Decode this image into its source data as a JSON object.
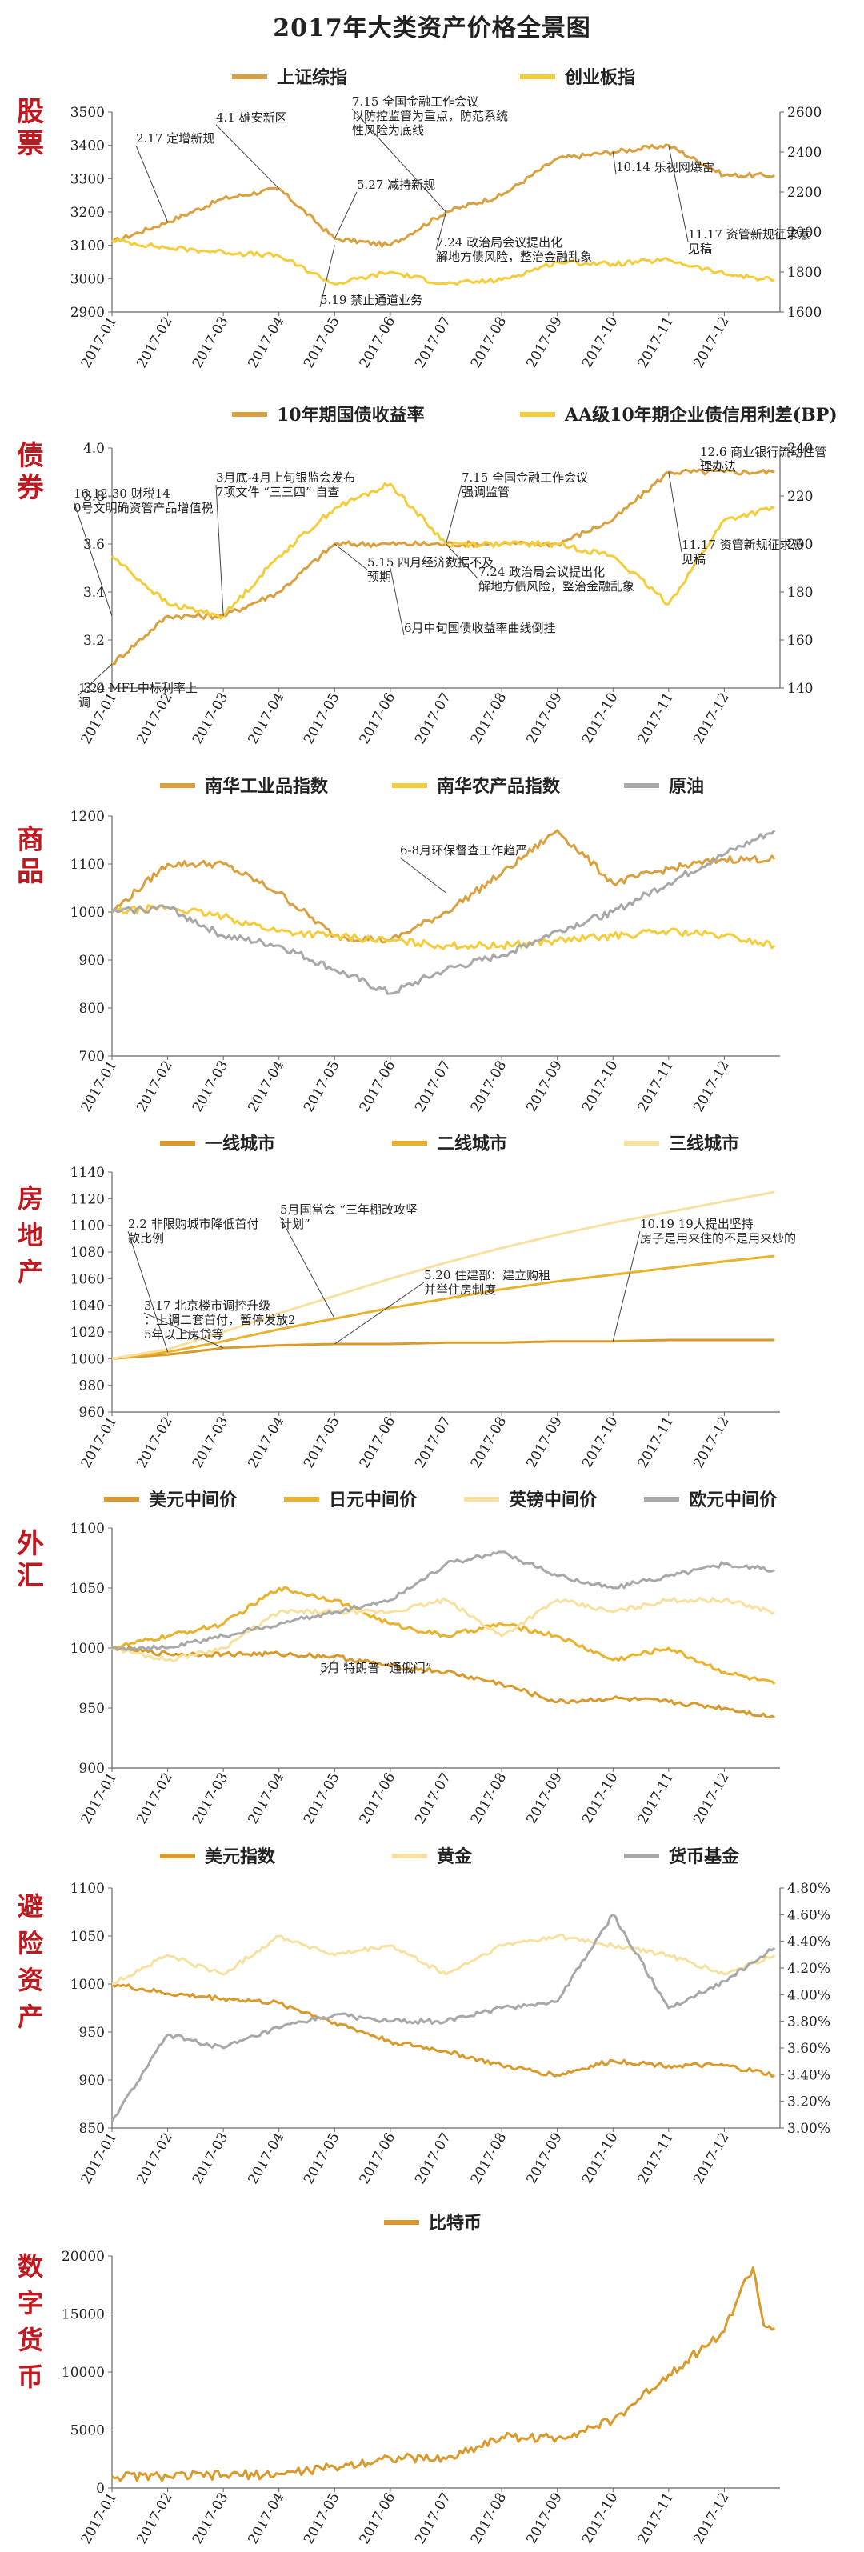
{
  "title": "2017年大类资产价格全景图",
  "chart_data": [
    {
      "id": "stocks",
      "type": "line",
      "section_label": "股票",
      "legend_placement": "top",
      "x": [
        "2017-01",
        "2017-02",
        "2017-03",
        "2017-04",
        "2017-05",
        "2017-06",
        "2017-07",
        "2017-08",
        "2017-09",
        "2017-10",
        "2017-11",
        "2017-12",
        "2017-12-29"
      ],
      "xticks": [
        "2017-01",
        "2017-02",
        "2017-03",
        "2017-04",
        "2017-05",
        "2017-06",
        "2017-07",
        "2017-08",
        "2017-09",
        "2017-10",
        "2017-11",
        "2017-12"
      ],
      "left_axis": {
        "ylim": [
          2900,
          3500
        ],
        "ticks": [
          2900,
          3000,
          3100,
          3200,
          3300,
          3400,
          3500
        ]
      },
      "right_axis": {
        "ylim": [
          1600,
          2600
        ],
        "ticks": [
          1600,
          1800,
          2000,
          2200,
          2400,
          2600
        ]
      },
      "series": [
        {
          "name": "上证综指",
          "axis": "left",
          "color": "#d9a03d",
          "values": [
            3110,
            3170,
            3240,
            3270,
            3120,
            3100,
            3200,
            3250,
            3360,
            3380,
            3400,
            3310,
            3310
          ]
        },
        {
          "name": "创业板指",
          "axis": "right",
          "color": "#f5cc3a",
          "values": [
            1960,
            1920,
            1900,
            1880,
            1740,
            1800,
            1740,
            1760,
            1850,
            1840,
            1860,
            1790,
            1760
          ]
        }
      ],
      "annotations": [
        {
          "text": "2.17 定增新规",
          "x": "2017-02",
          "y": 3170
        },
        {
          "text": "4.1 雄安新区",
          "x": "2017-04",
          "y": 3270
        },
        {
          "text": "5.19 禁止通道业务",
          "x": "2017-05",
          "y": 3100
        },
        {
          "text": "5.27 减持新规",
          "x": "2017-05",
          "y": 3120
        },
        {
          "text": "7.15 全国金融工作会议以防控监管为重点，防范系统性风险为底线",
          "x": "2017-07",
          "y": 3200
        },
        {
          "text": "7.24 政治局会议提出化解地方债风险，整治金融乱象",
          "x": "2017-07",
          "y": 3200
        },
        {
          "text": "10.14 乐视网爆雷",
          "x": "2017-10",
          "y": 3380
        },
        {
          "text": "11.17 资管新规征求意见稿",
          "x": "2017-11",
          "y": 3400
        }
      ]
    },
    {
      "id": "bonds",
      "type": "line",
      "section_label": "债券",
      "legend_placement": "top",
      "x": [
        "2017-01",
        "2017-02",
        "2017-03",
        "2017-04",
        "2017-05",
        "2017-06",
        "2017-07",
        "2017-08",
        "2017-09",
        "2017-10",
        "2017-11",
        "2017-12",
        "2017-12-29"
      ],
      "xticks": [
        "2017-01",
        "2017-02",
        "2017-03",
        "2017-04",
        "2017-05",
        "2017-06",
        "2017-07",
        "2017-08",
        "2017-09",
        "2017-10",
        "2017-11",
        "2017-12"
      ],
      "left_axis": {
        "ylim": [
          3.0,
          4.0
        ],
        "ticks": [
          "3.0",
          "3.2",
          "3.4",
          "3.6",
          "3.8",
          "4.0"
        ]
      },
      "right_axis": {
        "ylim": [
          140,
          240
        ],
        "ticks": [
          140,
          160,
          180,
          200,
          220,
          240
        ]
      },
      "series": [
        {
          "name": "10年期国债收益率",
          "axis": "left",
          "color": "#d9a03d",
          "values": [
            3.1,
            3.3,
            3.3,
            3.4,
            3.6,
            3.6,
            3.6,
            3.6,
            3.6,
            3.7,
            3.9,
            3.9,
            3.9
          ]
        },
        {
          "name": "AA级10年期企业债信用利差(BP)",
          "axis": "right",
          "color": "#f5cc3a",
          "values": [
            195,
            175,
            170,
            195,
            215,
            225,
            200,
            200,
            200,
            195,
            175,
            210,
            215
          ]
        }
      ],
      "annotations": [
        {
          "text": "16.12.30 财税140号文明确资管产品增值税",
          "x": "2017-01",
          "y": 3.3
        },
        {
          "text": "1.24 MFL中标利率上调",
          "x": "2017-01",
          "y": 3.1
        },
        {
          "text": "3月底-4月上旬银监会发布7项文件 “三三四” 自查",
          "x": "2017-03",
          "y": 3.3
        },
        {
          "text": "5.15 四月经济数据不及预期",
          "x": "2017-05",
          "y": 3.6
        },
        {
          "text": "6月中旬国债收益率曲线倒挂",
          "x": "2017-06",
          "y": 3.5
        },
        {
          "text": "7.15 全国金融工作会议强调监管",
          "x": "2017-07",
          "y": 3.6
        },
        {
          "text": "7.24 政治局会议提出化解地方债风险，整治金融乱象",
          "x": "2017-07",
          "y": 3.6
        },
        {
          "text": "12.6 商业银行流动性管理办法",
          "x": "2017-12",
          "y": 3.9
        },
        {
          "text": "11.17 资管新规征求意见稿",
          "x": "2017-11",
          "y": 3.9
        }
      ]
    },
    {
      "id": "commodities",
      "type": "line",
      "section_label": "商品",
      "legend_placement": "top",
      "x": [
        "2017-01",
        "2017-02",
        "2017-03",
        "2017-04",
        "2017-05",
        "2017-06",
        "2017-07",
        "2017-08",
        "2017-09",
        "2017-10",
        "2017-11",
        "2017-12",
        "2017-12-29"
      ],
      "xticks": [
        "2017-01",
        "2017-02",
        "2017-03",
        "2017-04",
        "2017-05",
        "2017-06",
        "2017-07",
        "2017-08",
        "2017-09",
        "2017-10",
        "2017-11",
        "2017-12"
      ],
      "left_axis": {
        "ylim": [
          700,
          1200
        ],
        "ticks": [
          700,
          800,
          900,
          1000,
          1100,
          1200
        ]
      },
      "series": [
        {
          "name": "南华工业品指数",
          "axis": "left",
          "color": "#d9a03d",
          "values": [
            1000,
            1100,
            1100,
            1040,
            950,
            940,
            1000,
            1080,
            1170,
            1060,
            1090,
            1110,
            1110
          ]
        },
        {
          "name": "南华农产品指数",
          "axis": "left",
          "color": "#f5cc3a",
          "values": [
            1000,
            1010,
            990,
            960,
            950,
            940,
            930,
            930,
            940,
            950,
            960,
            950,
            930
          ]
        },
        {
          "name": "原油",
          "axis": "left",
          "color": "#a8a8a8",
          "values": [
            1000,
            1010,
            950,
            930,
            880,
            830,
            880,
            910,
            960,
            1000,
            1060,
            1120,
            1170
          ]
        }
      ],
      "annotations": [
        {
          "text": "6-8月环保督查工作趋严",
          "x": "2017-07",
          "y": 1040
        }
      ]
    },
    {
      "id": "real_estate",
      "type": "line",
      "section_label": "房地产",
      "legend_placement": "top",
      "x": [
        "2017-01",
        "2017-02",
        "2017-03",
        "2017-04",
        "2017-05",
        "2017-06",
        "2017-07",
        "2017-08",
        "2017-09",
        "2017-10",
        "2017-11",
        "2017-12",
        "2017-12-29"
      ],
      "xticks": [
        "2017-01",
        "2017-02",
        "2017-03",
        "2017-04",
        "2017-05",
        "2017-06",
        "2017-07",
        "2017-08",
        "2017-09",
        "2017-10",
        "2017-11",
        "2017-12"
      ],
      "left_axis": {
        "ylim": [
          960,
          1140
        ],
        "ticks": [
          960,
          980,
          1000,
          1020,
          1040,
          1060,
          1080,
          1100,
          1120,
          1140
        ]
      },
      "series": [
        {
          "name": "一线城市",
          "axis": "left",
          "color": "#d99a2b",
          "values": [
            1000,
            1003,
            1008,
            1010,
            1011,
            1011,
            1012,
            1012,
            1013,
            1013,
            1014,
            1014,
            1014
          ]
        },
        {
          "name": "二线城市",
          "axis": "left",
          "color": "#eab22a",
          "values": [
            1000,
            1005,
            1013,
            1022,
            1030,
            1038,
            1045,
            1052,
            1058,
            1063,
            1068,
            1073,
            1077
          ]
        },
        {
          "name": "三线城市",
          "axis": "left",
          "color": "#f8e1a0",
          "values": [
            1000,
            1007,
            1020,
            1034,
            1047,
            1060,
            1072,
            1083,
            1093,
            1102,
            1110,
            1118,
            1125
          ]
        }
      ],
      "annotations": [
        {
          "text": "2.2 非限购城市降低首付款比例",
          "x": "2017-02",
          "y": 1005
        },
        {
          "text": "3.17 北京楼市调控升级：上调二套首付，暂停发放25年以上房贷等",
          "x": "2017-03",
          "y": 1008
        },
        {
          "text": "5月国常会 “三年棚改攻坚计划”",
          "x": "2017-05",
          "y": 1030
        },
        {
          "text": "5.20 住建部：建立购租并举住房制度",
          "x": "2017-05",
          "y": 1011
        },
        {
          "text": "10.19 19大提出坚持房子是用来住的不是用来炒的",
          "x": "2017-10",
          "y": 1013
        }
      ]
    },
    {
      "id": "fx",
      "type": "line",
      "section_label": "外汇",
      "legend_placement": "top",
      "x": [
        "2017-01",
        "2017-02",
        "2017-03",
        "2017-04",
        "2017-05",
        "2017-06",
        "2017-07",
        "2017-08",
        "2017-09",
        "2017-10",
        "2017-11",
        "2017-12",
        "2017-12-29"
      ],
      "xticks": [
        "2017-01",
        "2017-02",
        "2017-03",
        "2017-04",
        "2017-05",
        "2017-06",
        "2017-07",
        "2017-08",
        "2017-09",
        "2017-10",
        "2017-11",
        "2017-12"
      ],
      "left_axis": {
        "ylim": [
          900,
          1100
        ],
        "ticks": [
          900,
          950,
          1000,
          1050,
          1100
        ]
      },
      "series": [
        {
          "name": "美元中间价",
          "axis": "left",
          "color": "#d99a2b",
          "values": [
            1000,
            995,
            995,
            995,
            993,
            985,
            980,
            970,
            955,
            958,
            955,
            950,
            942
          ]
        },
        {
          "name": "日元中间价",
          "axis": "left",
          "color": "#eab22a",
          "values": [
            1000,
            1010,
            1020,
            1050,
            1040,
            1020,
            1010,
            1020,
            1010,
            990,
            1000,
            980,
            970
          ]
        },
        {
          "name": "英镑中间价",
          "axis": "left",
          "color": "#f8e1a0",
          "values": [
            1000,
            990,
            1000,
            1030,
            1030,
            1030,
            1040,
            1010,
            1040,
            1030,
            1040,
            1040,
            1030
          ]
        },
        {
          "name": "欧元中间价",
          "axis": "left",
          "color": "#a8a8a8",
          "values": [
            1000,
            1000,
            1010,
            1020,
            1030,
            1040,
            1070,
            1080,
            1060,
            1050,
            1060,
            1070,
            1065
          ]
        }
      ],
      "annotations": [
        {
          "text": "5月 特朗普 “通俄门”",
          "x": "2017-05",
          "y": 990
        }
      ]
    },
    {
      "id": "safe_haven",
      "type": "line",
      "section_label": "避险资产",
      "legend_placement": "top",
      "x": [
        "2017-01",
        "2017-02",
        "2017-03",
        "2017-04",
        "2017-05",
        "2017-06",
        "2017-07",
        "2017-08",
        "2017-09",
        "2017-10",
        "2017-11",
        "2017-12",
        "2017-12-29"
      ],
      "xticks": [
        "2017-01",
        "2017-02",
        "2017-03",
        "2017-04",
        "2017-05",
        "2017-06",
        "2017-07",
        "2017-08",
        "2017-09",
        "2017-10",
        "2017-11",
        "2017-12"
      ],
      "left_axis": {
        "ylim": [
          850,
          1100
        ],
        "ticks": [
          850,
          900,
          950,
          1000,
          1050,
          1100
        ]
      },
      "right_axis": {
        "ylim": [
          3.0,
          4.8
        ],
        "ticks": [
          "3.00%",
          "3.20%",
          "3.40%",
          "3.60%",
          "3.80%",
          "4.00%",
          "4.20%",
          "4.40%",
          "4.60%",
          "4.80%"
        ]
      },
      "series": [
        {
          "name": "美元指数",
          "axis": "left",
          "color": "#d99a2b",
          "values": [
            1000,
            990,
            985,
            980,
            960,
            940,
            930,
            915,
            905,
            920,
            915,
            915,
            905
          ]
        },
        {
          "name": "黄金",
          "axis": "left",
          "color": "#f8e1a0",
          "values": [
            1000,
            1030,
            1010,
            1050,
            1030,
            1040,
            1010,
            1040,
            1050,
            1040,
            1030,
            1010,
            1030
          ]
        },
        {
          "name": "货币基金",
          "axis": "right",
          "color": "#a8a8a8",
          "values": [
            3.05,
            3.7,
            3.6,
            3.75,
            3.85,
            3.8,
            3.8,
            3.9,
            3.95,
            4.6,
            3.9,
            4.1,
            4.35
          ]
        }
      ]
    },
    {
      "id": "crypto",
      "type": "line",
      "section_label": "数字货币",
      "legend_placement": "top",
      "x": [
        "2017-01",
        "2017-02",
        "2017-03",
        "2017-04",
        "2017-05",
        "2017-06",
        "2017-07",
        "2017-08",
        "2017-09",
        "2017-10",
        "2017-11",
        "2017-12",
        "2017-12-10",
        "2017-12-17",
        "2017-12-23",
        "2017-12-29"
      ],
      "xticks": [
        "2017-01",
        "2017-02",
        "2017-03",
        "2017-04",
        "2017-05",
        "2017-06",
        "2017-07",
        "2017-08",
        "2017-09",
        "2017-10",
        "2017-11",
        "2017-12"
      ],
      "left_axis": {
        "ylim": [
          0,
          20000
        ],
        "ticks": [
          0,
          5000,
          10000,
          15000,
          20000
        ]
      },
      "series": [
        {
          "name": "比特币",
          "axis": "left",
          "color": "#d99a2b",
          "values": [
            1000,
            1000,
            1100,
            1200,
            1800,
            2600,
            2500,
            4400,
            4300,
            5800,
            9800,
            13500,
            17000,
            19000,
            14000,
            13800
          ]
        }
      ]
    }
  ]
}
